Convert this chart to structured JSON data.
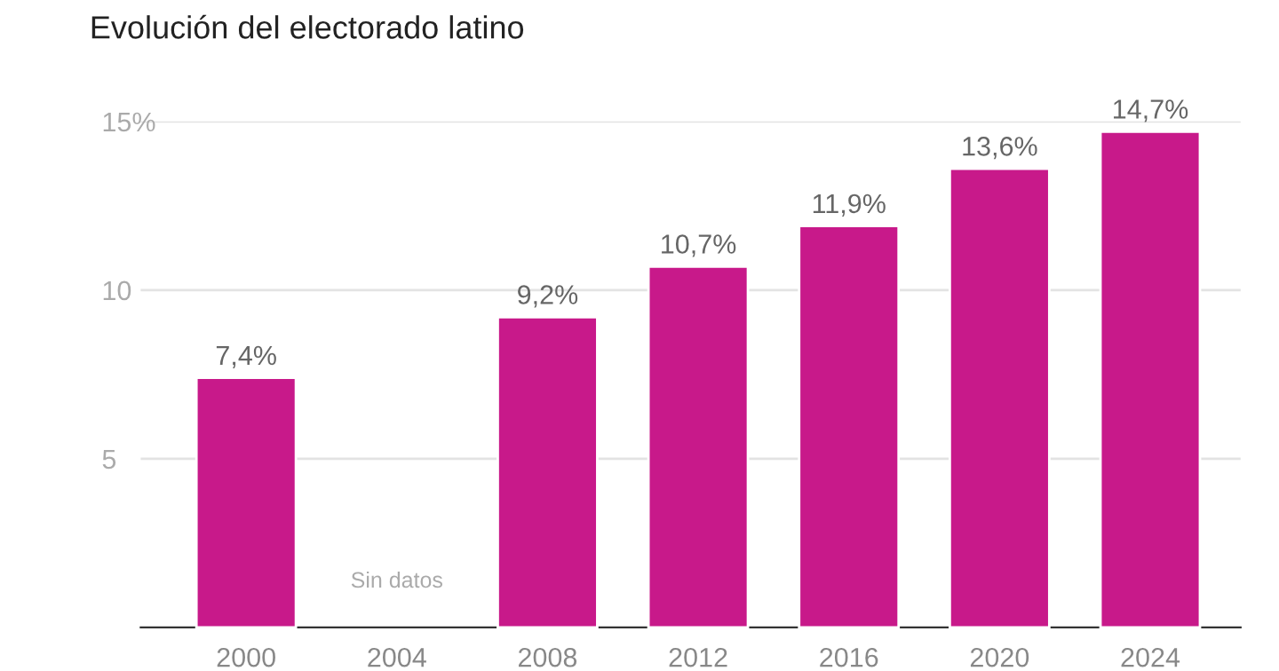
{
  "chart_data": {
    "type": "bar",
    "title": "Evolución del electorado latino",
    "categories": [
      "2000",
      "2004",
      "2008",
      "2012",
      "2016",
      "2020",
      "2024"
    ],
    "values": [
      7.4,
      null,
      9.2,
      10.7,
      11.9,
      13.6,
      14.7
    ],
    "value_labels": [
      "7,4%",
      null,
      "9,2%",
      "10,7%",
      "11,9%",
      "13,6%",
      "14,7%"
    ],
    "color": "#c8198a",
    "ylim": [
      0,
      15
    ],
    "yticks": [
      5,
      10,
      {
        "value": 15,
        "label": "15%"
      }
    ],
    "grid": "y",
    "annotations": [
      "Sin datos"
    ]
  }
}
